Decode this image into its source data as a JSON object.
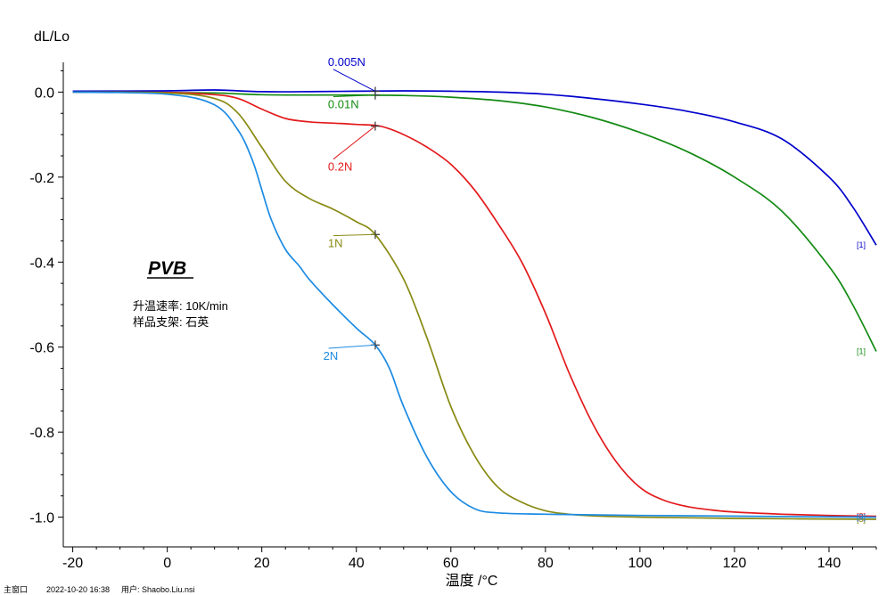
{
  "footer": {
    "window": "主窗口",
    "datetime": "2022-10-20 16:38",
    "user": "用户: Shaobo.Liu.nsi"
  },
  "chart_data": {
    "type": "line",
    "title": "PVB",
    "xlabel": "温度 /°C",
    "ylabel": "dL/Lo",
    "xlim": [
      -22,
      150
    ],
    "ylim": [
      -1.07,
      0.07
    ],
    "xticks": [
      -20,
      0,
      20,
      40,
      60,
      80,
      100,
      120,
      140
    ],
    "yticks": [
      0.0,
      -0.2,
      -0.4,
      -0.6,
      -0.8,
      -1.0
    ],
    "ytick_labels": [
      "0.0",
      "-0.2",
      "-0.4",
      "-0.6",
      "-0.8",
      "-1.0"
    ],
    "grid": false,
    "info_lines": [
      "升温速率: 10K/min",
      "样品支架: 石英"
    ],
    "series": [
      {
        "name": "0.005N",
        "color": "#0000cc",
        "end_tag": "[1]",
        "marker": [
          44,
          0.002
        ],
        "x": [
          -20,
          0,
          10,
          20,
          30,
          40,
          50,
          60,
          70,
          80,
          90,
          100,
          110,
          120,
          130,
          140,
          145,
          150
        ],
        "y": [
          0.002,
          0.003,
          0.005,
          0.001,
          0.001,
          0.002,
          0.003,
          0.002,
          0.0,
          -0.005,
          -0.015,
          -0.028,
          -0.045,
          -0.07,
          -0.11,
          -0.2,
          -0.27,
          -0.36
        ]
      },
      {
        "name": "0.01N",
        "color": "#138a13",
        "end_tag": "[1]",
        "marker": [
          44,
          -0.007
        ],
        "x": [
          -20,
          0,
          10,
          20,
          30,
          40,
          50,
          60,
          70,
          80,
          90,
          100,
          110,
          120,
          130,
          140,
          145,
          150
        ],
        "y": [
          0.0,
          -0.001,
          -0.002,
          -0.006,
          -0.007,
          -0.007,
          -0.008,
          -0.012,
          -0.02,
          -0.035,
          -0.06,
          -0.095,
          -0.14,
          -0.2,
          -0.28,
          -0.41,
          -0.5,
          -0.61
        ]
      },
      {
        "name": "0.2N",
        "color": "#e31a1c",
        "end_tag": "[3]",
        "marker": [
          44,
          -0.08
        ],
        "x": [
          -20,
          0,
          10,
          15,
          20,
          25,
          30,
          35,
          40,
          45,
          50,
          55,
          60,
          65,
          70,
          75,
          80,
          85,
          90,
          95,
          100,
          105,
          110,
          115,
          120,
          130,
          140,
          150
        ],
        "y": [
          0.0,
          -0.001,
          -0.006,
          -0.015,
          -0.04,
          -0.062,
          -0.07,
          -0.073,
          -0.076,
          -0.08,
          -0.1,
          -0.13,
          -0.17,
          -0.23,
          -0.31,
          -0.4,
          -0.52,
          -0.66,
          -0.78,
          -0.87,
          -0.93,
          -0.96,
          -0.975,
          -0.983,
          -0.988,
          -0.993,
          -0.996,
          -0.998
        ]
      },
      {
        "name": "1N",
        "color": "#888a12",
        "end_tag": "[3]",
        "marker": [
          44,
          -0.335
        ],
        "x": [
          -20,
          0,
          10,
          15,
          20,
          25,
          30,
          35,
          40,
          44,
          50,
          55,
          60,
          65,
          70,
          75,
          80,
          85,
          90,
          100,
          120,
          150
        ],
        "y": [
          0.0,
          -0.002,
          -0.015,
          -0.05,
          -0.13,
          -0.21,
          -0.25,
          -0.275,
          -0.305,
          -0.335,
          -0.44,
          -0.58,
          -0.74,
          -0.855,
          -0.93,
          -0.965,
          -0.985,
          -0.993,
          -0.997,
          -1.0,
          -1.003,
          -1.005
        ]
      },
      {
        "name": "2N",
        "color": "#1c8be3",
        "end_tag": "[3]",
        "marker": [
          44,
          -0.595
        ],
        "x": [
          -20,
          0,
          10,
          15,
          18,
          20,
          22,
          25,
          28,
          30,
          35,
          40,
          44,
          47,
          50,
          55,
          60,
          65,
          70,
          80,
          100,
          150
        ],
        "y": [
          0.0,
          -0.005,
          -0.03,
          -0.09,
          -0.16,
          -0.23,
          -0.3,
          -0.37,
          -0.41,
          -0.44,
          -0.5,
          -0.555,
          -0.595,
          -0.65,
          -0.74,
          -0.86,
          -0.94,
          -0.98,
          -0.99,
          -0.993,
          -0.996,
          -1.0
        ]
      }
    ],
    "labels": [
      {
        "text": "0.005N",
        "series": 0,
        "at": [
          34,
          0.062
        ]
      },
      {
        "text": "0.01N",
        "series": 1,
        "at": [
          34,
          -0.038
        ]
      },
      {
        "text": "0.2N",
        "series": 2,
        "at": [
          34,
          -0.185
        ]
      },
      {
        "text": "1N",
        "series": 3,
        "at": [
          34,
          -0.365
        ]
      },
      {
        "text": "2N",
        "series": 4,
        "at": [
          33,
          -0.63
        ]
      }
    ]
  }
}
